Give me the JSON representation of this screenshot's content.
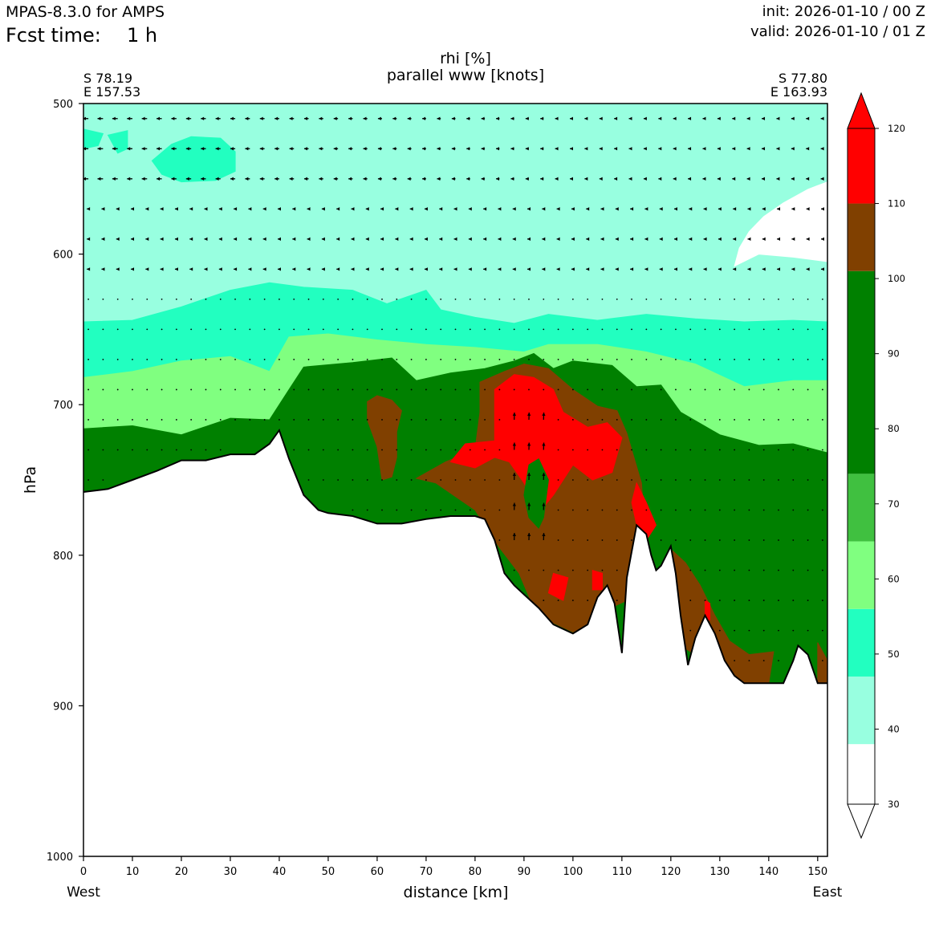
{
  "header": {
    "model": "MPAS-8.3.0 for AMPS",
    "fcst_label": "Fcst time:",
    "fcst_value": "1 h",
    "init": "init: 2026-01-10 / 00 Z",
    "valid": "valid: 2026-01-10 / 01 Z"
  },
  "chart_data": {
    "type": "contourf-cross-section",
    "title": "rhi [%]",
    "subtitle": "parallel www [knots]",
    "xlabel": "distance [km]",
    "ylabel": "hPa",
    "xlim": [
      0,
      152
    ],
    "ylim": [
      1000,
      500
    ],
    "x_ticks": [
      0,
      10,
      20,
      30,
      40,
      50,
      60,
      70,
      80,
      90,
      100,
      110,
      120,
      130,
      140,
      150
    ],
    "y_ticks": [
      500,
      600,
      700,
      800,
      900,
      1000
    ],
    "left_endpoint": {
      "lat": "S 78.19",
      "lon": "E 157.53",
      "side": "West"
    },
    "right_endpoint": {
      "lat": "S 77.80",
      "lon": "E 163.93",
      "side": "East"
    },
    "colorbar": {
      "levels": [
        30,
        40,
        50,
        60,
        70,
        80,
        90,
        100,
        110,
        120
      ],
      "bins": [
        {
          "range": [
            30,
            38
          ],
          "color": "#ffffff"
        },
        {
          "range": [
            38,
            47
          ],
          "color": "#98ffe0"
        },
        {
          "range": [
            47,
            56
          ],
          "color": "#22ffc0"
        },
        {
          "range": [
            56,
            65
          ],
          "color": "#80ff80"
        },
        {
          "range": [
            65,
            74
          ],
          "color": "#40c040"
        },
        {
          "range": [
            74,
            101
          ],
          "color": "#008000"
        },
        {
          "range": [
            101,
            110
          ],
          "color": "#804000"
        },
        {
          "range": [
            110,
            120
          ],
          "color": "#ff0000"
        }
      ],
      "extend": "both"
    },
    "regions": [
      {
        "name": "white-dry-top-right",
        "color": "#ffffff",
        "points": [
          [
            133,
            608
          ],
          [
            134,
            596
          ],
          [
            136,
            585
          ],
          [
            139,
            575
          ],
          [
            143,
            566
          ],
          [
            148,
            557
          ],
          [
            152,
            552
          ],
          [
            152,
            605
          ],
          [
            145,
            602
          ],
          [
            138,
            600
          ]
        ]
      },
      {
        "name": "band-50",
        "color": "#22ffc0",
        "points": [
          [
            0,
            645
          ],
          [
            10,
            644
          ],
          [
            20,
            635
          ],
          [
            30,
            624
          ],
          [
            38,
            619
          ],
          [
            45,
            622
          ],
          [
            55,
            624
          ],
          [
            62,
            633
          ],
          [
            70,
            624
          ],
          [
            73,
            637
          ],
          [
            80,
            642
          ],
          [
            88,
            646
          ],
          [
            95,
            640
          ],
          [
            105,
            644
          ],
          [
            115,
            640
          ],
          [
            125,
            643
          ],
          [
            135,
            645
          ],
          [
            145,
            644
          ],
          [
            152,
            645
          ],
          [
            152,
            700
          ],
          [
            0,
            700
          ]
        ]
      },
      {
        "name": "band-60",
        "color": "#80ff80",
        "points": [
          [
            0,
            682
          ],
          [
            10,
            678
          ],
          [
            20,
            671
          ],
          [
            30,
            668
          ],
          [
            38,
            678
          ],
          [
            42,
            655
          ],
          [
            50,
            653
          ],
          [
            60,
            657
          ],
          [
            70,
            660
          ],
          [
            80,
            662
          ],
          [
            90,
            665
          ],
          [
            95,
            660
          ],
          [
            105,
            660
          ],
          [
            115,
            665
          ],
          [
            125,
            673
          ],
          [
            135,
            688
          ],
          [
            145,
            684
          ],
          [
            152,
            684
          ],
          [
            152,
            732
          ],
          [
            0,
            732
          ]
        ]
      },
      {
        "name": "band-80",
        "color": "#008000",
        "points": [
          [
            0,
            716
          ],
          [
            10,
            714
          ],
          [
            20,
            720
          ],
          [
            30,
            709
          ],
          [
            38,
            710
          ],
          [
            42,
            690
          ],
          [
            45,
            675
          ],
          [
            55,
            672
          ],
          [
            63,
            669
          ],
          [
            68,
            684
          ],
          [
            75,
            679
          ],
          [
            82,
            676
          ],
          [
            88,
            671
          ],
          [
            92,
            666
          ],
          [
            96,
            676
          ],
          [
            100,
            671
          ],
          [
            108,
            674
          ],
          [
            113,
            688
          ],
          [
            118,
            687
          ],
          [
            122,
            705
          ],
          [
            130,
            720
          ],
          [
            138,
            727
          ],
          [
            145,
            726
          ],
          [
            152,
            732
          ],
          [
            152,
            900
          ],
          [
            0,
            900
          ]
        ]
      },
      {
        "name": "band-100-main",
        "color": "#804000",
        "points": [
          [
            81,
            685
          ],
          [
            86,
            678
          ],
          [
            90,
            673
          ],
          [
            95,
            676
          ],
          [
            100,
            690
          ],
          [
            105,
            701
          ],
          [
            109,
            704
          ],
          [
            111,
            719
          ],
          [
            114,
            752
          ],
          [
            115,
            795
          ],
          [
            111,
            830
          ],
          [
            107,
            836
          ],
          [
            104,
            846
          ],
          [
            100,
            851
          ],
          [
            96,
            845
          ],
          [
            92,
            835
          ],
          [
            89,
            812
          ],
          [
            85,
            795
          ],
          [
            80,
            770
          ],
          [
            72,
            752
          ],
          [
            68,
            749
          ],
          [
            74,
            738
          ],
          [
            80,
            730
          ],
          [
            81,
            705
          ]
        ]
      },
      {
        "name": "band-100-west-blob",
        "color": "#804000",
        "points": [
          [
            58,
            698
          ],
          [
            60,
            694
          ],
          [
            63,
            697
          ],
          [
            65,
            704
          ],
          [
            64,
            718
          ],
          [
            64,
            735
          ],
          [
            63,
            748
          ],
          [
            61,
            750
          ],
          [
            60,
            728
          ],
          [
            58,
            710
          ]
        ]
      },
      {
        "name": "band-100-east",
        "color": "#804000",
        "points": [
          [
            120,
            796
          ],
          [
            123,
            805
          ],
          [
            126,
            820
          ],
          [
            129,
            840
          ],
          [
            132,
            857
          ],
          [
            136,
            866
          ],
          [
            141,
            864
          ],
          [
            140,
            885
          ],
          [
            135,
            885
          ],
          [
            130,
            880
          ],
          [
            127,
            870
          ],
          [
            122,
            860
          ],
          [
            120,
            830
          ]
        ]
      },
      {
        "name": "band-100-far-east",
        "color": "#804000",
        "points": [
          [
            150,
            858
          ],
          [
            152,
            870
          ],
          [
            152,
            888
          ],
          [
            150,
            888
          ]
        ]
      },
      {
        "name": "band-110-core",
        "color": "#ff0000",
        "points": [
          [
            84,
            690
          ],
          [
            88,
            680
          ],
          [
            92,
            682
          ],
          [
            96,
            690
          ],
          [
            98,
            705
          ],
          [
            103,
            715
          ],
          [
            107,
            712
          ],
          [
            110,
            722
          ],
          [
            108,
            745
          ],
          [
            104,
            750
          ],
          [
            100,
            740
          ],
          [
            96,
            760
          ],
          [
            93,
            772
          ],
          [
            90,
            752
          ],
          [
            87,
            738
          ],
          [
            84,
            735
          ],
          [
            80,
            742
          ],
          [
            75,
            738
          ],
          [
            78,
            726
          ],
          [
            84,
            724
          ]
        ]
      },
      {
        "name": "band-110-east-spot",
        "color": "#ff0000",
        "points": [
          [
            113,
            752
          ],
          [
            115,
            765
          ],
          [
            117,
            780
          ],
          [
            115,
            790
          ],
          [
            113,
            780
          ],
          [
            112,
            765
          ]
        ]
      },
      {
        "name": "band-110-lower-spot",
        "color": "#ff0000",
        "points": [
          [
            96,
            812
          ],
          [
            99,
            815
          ],
          [
            98,
            830
          ],
          [
            95,
            825
          ]
        ]
      },
      {
        "name": "band-110-spot-3",
        "color": "#ff0000",
        "points": [
          [
            104,
            810
          ],
          [
            106,
            812
          ],
          [
            106,
            823
          ],
          [
            104,
            823
          ]
        ]
      },
      {
        "name": "band-110-spot-4",
        "color": "#ff0000",
        "points": [
          [
            127,
            830
          ],
          [
            128,
            832
          ],
          [
            128,
            843
          ],
          [
            127,
            843
          ]
        ]
      },
      {
        "name": "band-80-hole",
        "color": "#008000",
        "points": [
          [
            91,
            740
          ],
          [
            93,
            736
          ],
          [
            95,
            750
          ],
          [
            94,
            775
          ],
          [
            93,
            782
          ],
          [
            91,
            775
          ],
          [
            90,
            760
          ]
        ]
      },
      {
        "name": "band-50-blob-a",
        "color": "#22ffc0",
        "points": [
          [
            14,
            538
          ],
          [
            18,
            527
          ],
          [
            22,
            522
          ],
          [
            28,
            523
          ],
          [
            31,
            532
          ],
          [
            31,
            545
          ],
          [
            27,
            551
          ],
          [
            20,
            552
          ],
          [
            16,
            547
          ]
        ]
      },
      {
        "name": "band-50-blob-b",
        "color": "#22ffc0",
        "points": [
          [
            0,
            517
          ],
          [
            4,
            520
          ],
          [
            3,
            528
          ],
          [
            0,
            530
          ]
        ]
      },
      {
        "name": "band-50-blob-c",
        "color": "#22ffc0",
        "points": [
          [
            5,
            521
          ],
          [
            9,
            518
          ],
          [
            9,
            530
          ],
          [
            7,
            533
          ]
        ]
      }
    ],
    "terrain": {
      "note": "surface pressure profile (hPa) along the cross-section; region below is unplotted",
      "x": [
        0,
        5,
        10,
        15,
        20,
        25,
        30,
        35,
        38,
        40,
        42,
        45,
        48,
        50,
        55,
        60,
        65,
        70,
        75,
        80,
        82,
        84,
        86,
        88,
        90,
        93,
        96,
        100,
        103,
        105,
        107,
        108.5,
        110,
        111,
        113,
        115,
        116,
        117,
        118,
        120,
        121,
        122,
        123.5,
        125,
        127,
        129,
        131,
        133,
        135,
        137,
        139,
        141,
        143,
        145,
        146,
        148,
        150,
        152
      ],
      "y": [
        758,
        756,
        750,
        744,
        737,
        737,
        733,
        733,
        726,
        717,
        736,
        760,
        770,
        772,
        774,
        779,
        779,
        776,
        774,
        774,
        776,
        790,
        812,
        820,
        826,
        835,
        846,
        852,
        846,
        828,
        820,
        832,
        865,
        815,
        780,
        786,
        800,
        810,
        807,
        794,
        812,
        840,
        873,
        855,
        840,
        852,
        870,
        880,
        885,
        885,
        885,
        885,
        885,
        870,
        860,
        866,
        885,
        885
      ]
    },
    "wind_rows_hpa": [
      510,
      530,
      550,
      570,
      590,
      610,
      630,
      650,
      670,
      690,
      710,
      730,
      750,
      770,
      790,
      810,
      830,
      850,
      870
    ],
    "wind_cols_km": [
      1,
      4,
      7,
      10,
      13,
      16,
      19,
      22,
      25,
      28,
      31,
      34,
      37,
      40,
      43,
      46,
      49,
      52,
      55,
      58,
      61,
      64,
      67,
      70,
      73,
      76,
      79,
      82,
      85,
      88,
      91,
      94,
      97,
      100,
      103,
      106,
      109,
      112,
      115,
      118,
      121,
      124,
      127,
      130,
      133,
      136,
      139,
      142,
      145,
      148,
      151
    ],
    "wind_vectors_note": "parallel wind arrows; mostly westward aloft (~-2 to -3 kt), strong upward motion near 90-93 km between 700 and 800 hPa"
  }
}
